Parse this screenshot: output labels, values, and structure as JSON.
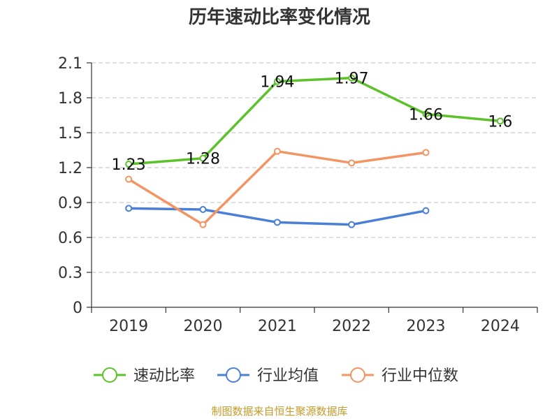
{
  "chart_data": {
    "type": "line",
    "title": "历年速动比率变化情况",
    "categories": [
      "2019",
      "2020",
      "2021",
      "2022",
      "2023",
      "2024"
    ],
    "y_ticks": [
      "0",
      "0.3",
      "0.6",
      "0.9",
      "1.2",
      "1.5",
      "1.8",
      "2.1"
    ],
    "ylim": [
      0,
      2.1
    ],
    "grid": true,
    "legend_position": "bottom",
    "series": [
      {
        "name": "速动比率",
        "color": "#5cc22a",
        "values": [
          1.23,
          1.28,
          1.94,
          1.97,
          1.66,
          1.6
        ],
        "labels": [
          "1.23",
          "1.28",
          "1.94",
          "1.97",
          "1.66",
          "1.6"
        ]
      },
      {
        "name": "行业均值",
        "color": "#4a7fd8",
        "values": [
          0.85,
          0.84,
          0.73,
          0.71,
          0.83,
          null
        ]
      },
      {
        "name": "行业中位数",
        "color": "#f39463",
        "values": [
          1.1,
          0.71,
          1.34,
          1.24,
          1.33,
          null
        ]
      }
    ]
  },
  "source_text": "制图数据来自恒生聚源数据库"
}
